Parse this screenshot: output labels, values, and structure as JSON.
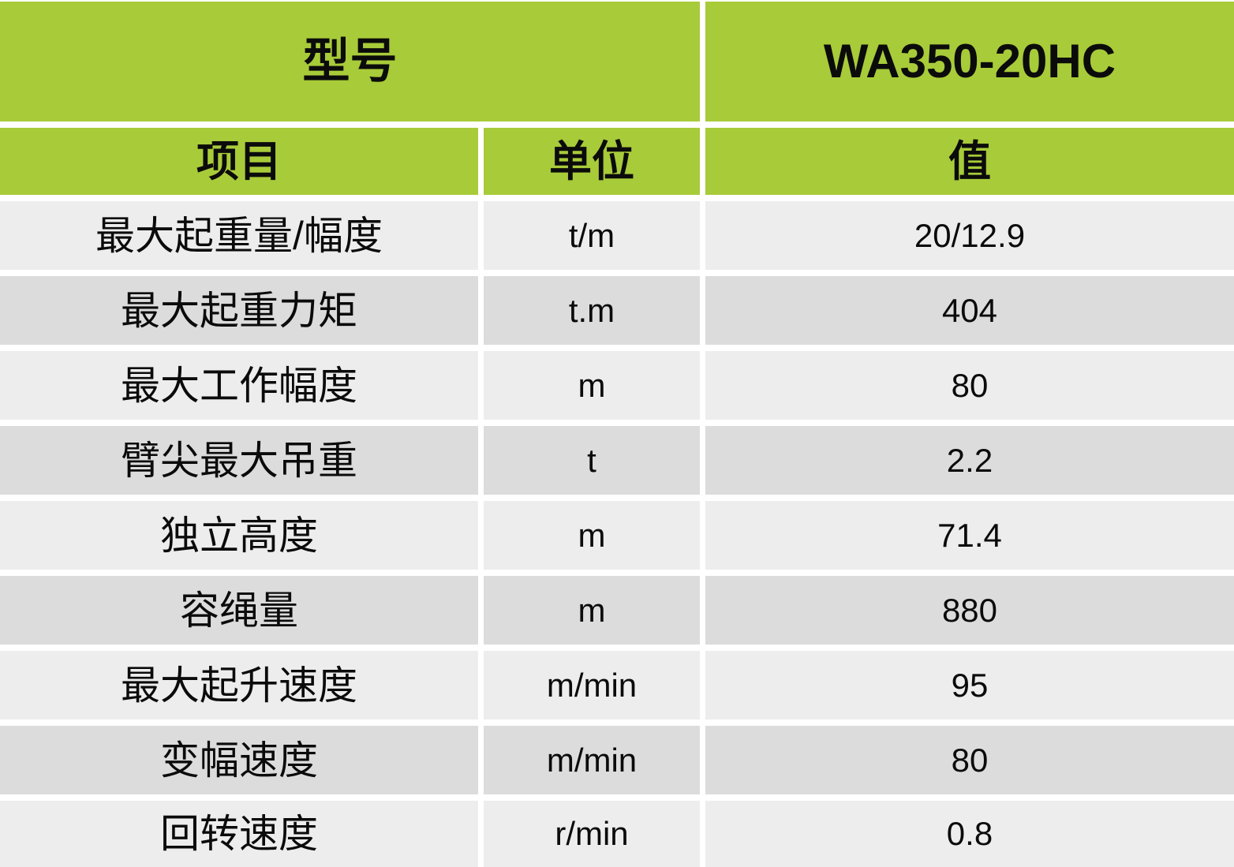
{
  "header": {
    "model_label": "型号",
    "model_value": "WA350-20HC",
    "columns": {
      "item": "项目",
      "unit": "单位",
      "value": "值"
    }
  },
  "rows": [
    {
      "item": "最大起重量/幅度",
      "unit": "t/m",
      "value": "20/12.9"
    },
    {
      "item": "最大起重力矩",
      "unit": "t.m",
      "value": "404"
    },
    {
      "item": "最大工作幅度",
      "unit": "m",
      "value": "80"
    },
    {
      "item": "臂尖最大吊重",
      "unit": "t",
      "value": "2.2"
    },
    {
      "item": "独立高度",
      "unit": "m",
      "value": "71.4"
    },
    {
      "item": "容绳量",
      "unit": "m",
      "value": "880"
    },
    {
      "item": "最大起升速度",
      "unit": "m/min",
      "value": "95"
    },
    {
      "item": "变幅速度",
      "unit": "m/min",
      "value": "80"
    },
    {
      "item": "回转速度",
      "unit": "r/min",
      "value": "0.8"
    }
  ],
  "colors": {
    "header_green": "#a8cb39",
    "row_light": "#ededed",
    "row_dark": "#dcdcdc",
    "gap_white": "#ffffff",
    "text": "#0b0b0b"
  }
}
